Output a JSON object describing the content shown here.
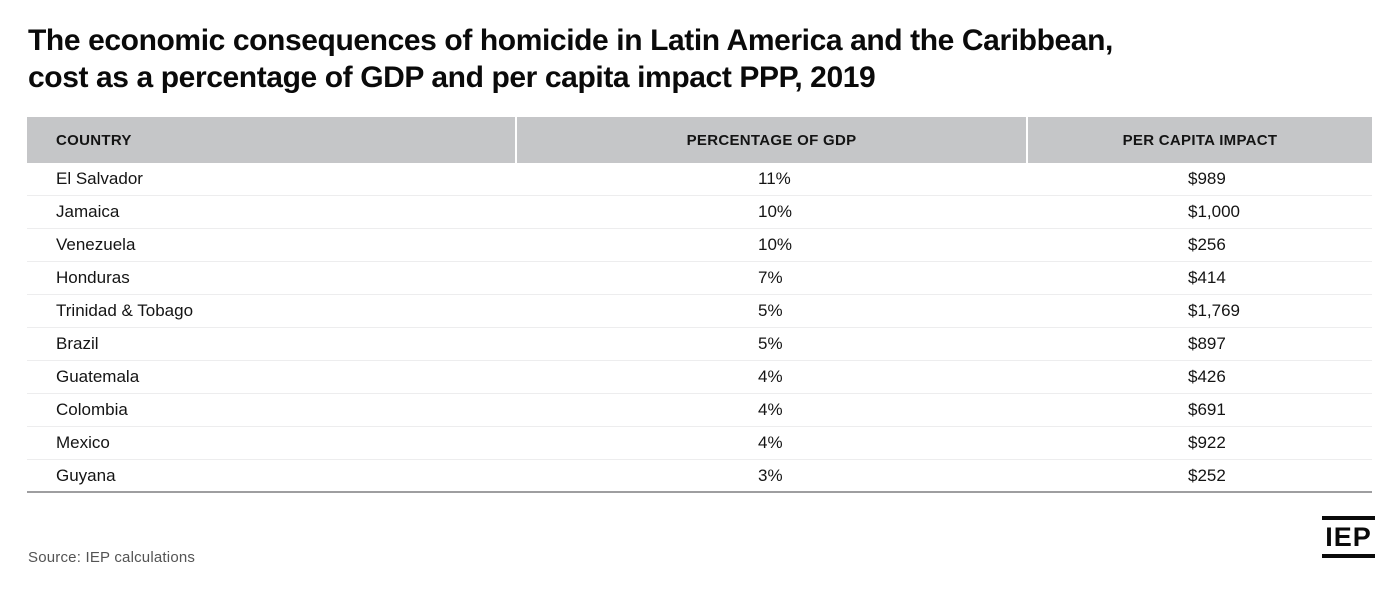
{
  "page": {
    "title_line1": "The economic consequences of homicide in Latin America and the Caribbean,",
    "title_line2": "cost as a percentage of GDP and per capita impact PPP, 2019",
    "source": "Source: IEP calculations",
    "logo_text": "IEP"
  },
  "table": {
    "columns": [
      {
        "label": "COUNTRY"
      },
      {
        "label": "PERCENTAGE OF GDP"
      },
      {
        "label": "PER CAPITA IMPACT"
      }
    ],
    "rows": [
      {
        "country": "El Salvador",
        "pct_gdp": "11%",
        "per_capita": "$989"
      },
      {
        "country": "Jamaica",
        "pct_gdp": "10%",
        "per_capita": "$1,000"
      },
      {
        "country": "Venezuela",
        "pct_gdp": "10%",
        "per_capita": "$256"
      },
      {
        "country": "Honduras",
        "pct_gdp": "7%",
        "per_capita": "$414"
      },
      {
        "country": "Trinidad & Tobago",
        "pct_gdp": "5%",
        "per_capita": "$1,769"
      },
      {
        "country": "Brazil",
        "pct_gdp": "5%",
        "per_capita": "$897"
      },
      {
        "country": "Guatemala",
        "pct_gdp": "4%",
        "per_capita": "$426"
      },
      {
        "country": "Colombia",
        "pct_gdp": "4%",
        "per_capita": "$691"
      },
      {
        "country": "Mexico",
        "pct_gdp": "4%",
        "per_capita": "$922"
      },
      {
        "country": "Guyana",
        "pct_gdp": "3%",
        "per_capita": "$252"
      }
    ]
  },
  "colors": {
    "header_bg": "#c5c6c8",
    "row_divider": "#ededee",
    "table_bottom_border": "#9e9ea0",
    "title_text": "#0a0a0a",
    "body_text": "#141414",
    "source_text": "#545454",
    "logo": "#0a0a0a",
    "background": "#ffffff"
  },
  "chart_data": {
    "type": "table",
    "title": "The economic consequences of homicide in Latin America and the Caribbean, cost as a percentage of GDP and per capita impact PPP, 2019",
    "columns": [
      "COUNTRY",
      "PERCENTAGE OF GDP",
      "PER CAPITA IMPACT"
    ],
    "categories": [
      "El Salvador",
      "Jamaica",
      "Venezuela",
      "Honduras",
      "Trinidad & Tobago",
      "Brazil",
      "Guatemala",
      "Colombia",
      "Mexico",
      "Guyana"
    ],
    "series": [
      {
        "name": "Percentage of GDP",
        "unit": "%",
        "values": [
          11,
          10,
          10,
          7,
          5,
          5,
          4,
          4,
          4,
          3
        ]
      },
      {
        "name": "Per capita impact (PPP)",
        "unit": "$",
        "values": [
          989,
          1000,
          256,
          414,
          1769,
          897,
          426,
          691,
          922,
          252
        ]
      }
    ],
    "source": "Source: IEP calculations",
    "legend_position": "none",
    "grid": "horizontal-row-dividers"
  }
}
